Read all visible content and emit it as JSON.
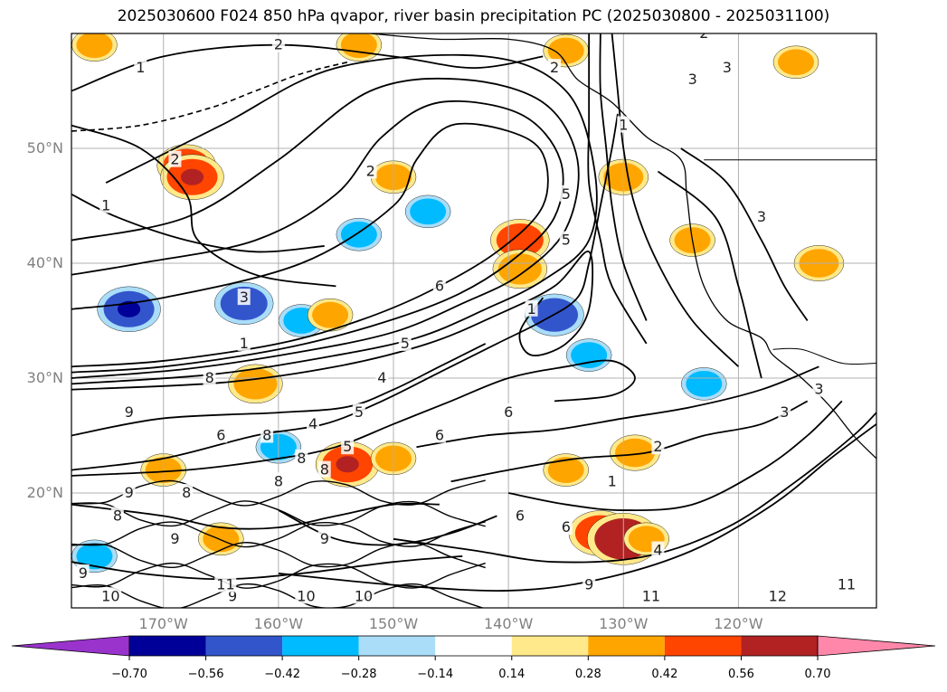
{
  "title": "2025030600 F024 850 hPa qvapor, river basin precipitation PC (2025030800 - 2025031100)",
  "chart_data": {
    "type": "contour",
    "title": "2025030600 F024 850 hPa qvapor, river basin precipitation PC (2025030800 - 2025031100)",
    "lat_ticks": [
      "50°N",
      "40°N",
      "30°N",
      "20°N"
    ],
    "lat_values": [
      50,
      40,
      30,
      20
    ],
    "lon_ticks": [
      "170°W",
      "160°W",
      "150°W",
      "140°W",
      "130°W",
      "120°W"
    ],
    "lon_values": [
      -170,
      -160,
      -150,
      -140,
      -130,
      -120
    ],
    "xlim": [
      -178,
      -108
    ],
    "ylim": [
      10,
      60
    ],
    "grid": true,
    "colorbar": {
      "orientation": "horizontal",
      "extend": "both",
      "bounds": [
        -0.7,
        -0.56,
        -0.42,
        -0.28,
        -0.14,
        0.14,
        0.28,
        0.42,
        0.56,
        0.7
      ],
      "tick_labels": [
        "−0.70",
        "−0.56",
        "−0.42",
        "−0.28",
        "−0.14",
        "0.14",
        "0.28",
        "0.42",
        "0.56",
        "0.70"
      ],
      "colors": [
        "#9933cc",
        "#000099",
        "#3355cc",
        "#00bbff",
        "#aaddf8",
        "#ffffff",
        "#ffe98a",
        "#ffa500",
        "#ff4500",
        "#b22222",
        "#ff88aa"
      ]
    },
    "contour_labels": [
      {
        "text": "2",
        "lon": -160,
        "lat": 59
      },
      {
        "text": "2",
        "lon": -136,
        "lat": 57
      },
      {
        "text": "1",
        "lon": -172,
        "lat": 57
      },
      {
        "text": "2",
        "lon": -169,
        "lat": 49
      },
      {
        "text": "2",
        "lon": -152,
        "lat": 48
      },
      {
        "text": "1",
        "lon": -175,
        "lat": 45
      },
      {
        "text": "3",
        "lon": -163,
        "lat": 37
      },
      {
        "text": "1",
        "lon": -163,
        "lat": 33
      },
      {
        "text": "6",
        "lon": -146,
        "lat": 38
      },
      {
        "text": "5",
        "lon": -149,
        "lat": 33
      },
      {
        "text": "8",
        "lon": -166,
        "lat": 30
      },
      {
        "text": "9",
        "lon": -173,
        "lat": 27
      },
      {
        "text": "6",
        "lon": -165,
        "lat": 25
      },
      {
        "text": "6",
        "lon": -146,
        "lat": 25
      },
      {
        "text": "6",
        "lon": -140,
        "lat": 27
      },
      {
        "text": "6",
        "lon": -139,
        "lat": 18
      },
      {
        "text": "6",
        "lon": -135,
        "lat": 17
      },
      {
        "text": "1",
        "lon": -138,
        "lat": 36
      },
      {
        "text": "5",
        "lon": -135,
        "lat": 46
      },
      {
        "text": "5",
        "lon": -135,
        "lat": 42
      },
      {
        "text": "1",
        "lon": -130,
        "lat": 52
      },
      {
        "text": "3",
        "lon": -124,
        "lat": 56
      },
      {
        "text": "3",
        "lon": -121,
        "lat": 57
      },
      {
        "text": "2",
        "lon": -123,
        "lat": 60
      },
      {
        "text": "3",
        "lon": -118,
        "lat": 44
      },
      {
        "text": "3",
        "lon": -116,
        "lat": 27
      },
      {
        "text": "3",
        "lon": -113,
        "lat": 29
      },
      {
        "text": "2",
        "lon": -127,
        "lat": 24
      },
      {
        "text": "1",
        "lon": -131,
        "lat": 21
      },
      {
        "text": "4",
        "lon": -127,
        "lat": 15
      },
      {
        "text": "9",
        "lon": -133,
        "lat": 12
      },
      {
        "text": "11",
        "lon": -128,
        "lat": 11
      },
      {
        "text": "12",
        "lon": -117,
        "lat": 11
      },
      {
        "text": "11",
        "lon": -111,
        "lat": 12
      },
      {
        "text": "9",
        "lon": -164,
        "lat": 11
      },
      {
        "text": "10",
        "lon": -153,
        "lat": 11
      },
      {
        "text": "10",
        "lon": -158,
        "lat": 11
      },
      {
        "text": "9",
        "lon": -169,
        "lat": 16
      },
      {
        "text": "8",
        "lon": -174,
        "lat": 18
      },
      {
        "text": "9",
        "lon": -173,
        "lat": 20
      },
      {
        "text": "8",
        "lon": -168,
        "lat": 20
      },
      {
        "text": "11",
        "lon": -165,
        "lat": 12
      },
      {
        "text": "10",
        "lon": -175,
        "lat": 11
      },
      {
        "text": "9",
        "lon": -177,
        "lat": 13
      },
      {
        "text": "8",
        "lon": -160,
        "lat": 21
      },
      {
        "text": "8",
        "lon": -156,
        "lat": 22
      },
      {
        "text": "9",
        "lon": -156,
        "lat": 16
      },
      {
        "text": "5",
        "lon": -154,
        "lat": 24
      },
      {
        "text": "8",
        "lon": -161,
        "lat": 25
      },
      {
        "text": "8",
        "lon": -158,
        "lat": 23
      },
      {
        "text": "4",
        "lon": -157,
        "lat": 26
      },
      {
        "text": "5",
        "lon": -153,
        "lat": 27
      },
      {
        "text": "4",
        "lon": -151,
        "lat": 30
      }
    ],
    "precip_blobs": [
      {
        "lon": -168,
        "lat": 48.5,
        "v": 0.45
      },
      {
        "lon": -167.5,
        "lat": 47.5,
        "v": 0.5
      },
      {
        "lon": -173,
        "lat": 36,
        "v": -0.5
      },
      {
        "lon": -163,
        "lat": 36.5,
        "v": -0.45
      },
      {
        "lon": -158,
        "lat": 35,
        "v": -0.3
      },
      {
        "lon": -162,
        "lat": 29.5,
        "v": 0.4
      },
      {
        "lon": -155.5,
        "lat": 35.5,
        "v": 0.3
      },
      {
        "lon": -154,
        "lat": 22.5,
        "v": 0.5
      },
      {
        "lon": -150,
        "lat": 23,
        "v": 0.3
      },
      {
        "lon": -139,
        "lat": 42,
        "v": 0.45
      },
      {
        "lon": -139,
        "lat": 39.5,
        "v": 0.4
      },
      {
        "lon": -136,
        "lat": 35.5,
        "v": -0.45
      },
      {
        "lon": -133,
        "lat": 32,
        "v": -0.3
      },
      {
        "lon": -130,
        "lat": 47.5,
        "v": 0.35
      },
      {
        "lon": -123,
        "lat": 29.5,
        "v": -0.3
      },
      {
        "lon": -129,
        "lat": 23.5,
        "v": 0.35
      },
      {
        "lon": -135,
        "lat": 22,
        "v": 0.3
      },
      {
        "lon": -132,
        "lat": 16.5,
        "v": 0.5
      },
      {
        "lon": -130,
        "lat": 16,
        "v": 0.6
      },
      {
        "lon": -128,
        "lat": 16,
        "v": 0.3
      },
      {
        "lon": -150,
        "lat": 47.5,
        "v": 0.3
      },
      {
        "lon": -153,
        "lat": 42.5,
        "v": -0.3
      },
      {
        "lon": -147,
        "lat": 44.5,
        "v": -0.3
      },
      {
        "lon": -176,
        "lat": 14.5,
        "v": -0.3
      },
      {
        "lon": -170,
        "lat": 22,
        "v": 0.3
      },
      {
        "lon": -160,
        "lat": 24,
        "v": -0.3
      },
      {
        "lon": -165,
        "lat": 16,
        "v": 0.3
      },
      {
        "lon": -135,
        "lat": 58.5,
        "v": 0.3
      },
      {
        "lon": -113,
        "lat": 40,
        "v": 0.35
      },
      {
        "lon": -124,
        "lat": 42,
        "v": 0.3
      },
      {
        "lon": -115,
        "lat": 57.5,
        "v": 0.3
      },
      {
        "lon": -176,
        "lat": 59,
        "v": 0.3
      },
      {
        "lon": -153,
        "lat": 59,
        "v": 0.3
      }
    ],
    "streamlines": [
      [
        [
          -178,
          31
        ],
        [
          -170,
          31.5
        ],
        [
          -160,
          33
        ],
        [
          -153,
          35
        ],
        [
          -147,
          37.5
        ],
        [
          -141,
          41
        ],
        [
          -137,
          45
        ],
        [
          -137,
          49.5
        ],
        [
          -140,
          51.5
        ],
        [
          -145,
          52
        ],
        [
          -148,
          49
        ],
        [
          -150,
          45
        ],
        [
          -158,
          40
        ],
        [
          -170,
          37
        ],
        [
          -178,
          36
        ]
      ],
      [
        [
          -178,
          30.5
        ],
        [
          -170,
          31
        ],
        [
          -160,
          32.5
        ],
        [
          -152,
          34.5
        ],
        [
          -145,
          37
        ],
        [
          -140,
          40
        ],
        [
          -136,
          44
        ],
        [
          -135.5,
          49
        ],
        [
          -139,
          53
        ],
        [
          -146,
          54
        ],
        [
          -151,
          51
        ],
        [
          -155,
          46
        ],
        [
          -162,
          42
        ],
        [
          -172,
          40
        ],
        [
          -178,
          39
        ]
      ],
      [
        [
          -178,
          30
        ],
        [
          -168,
          30.8
        ],
        [
          -158,
          32.3
        ],
        [
          -150,
          34
        ],
        [
          -144,
          36.5
        ],
        [
          -139,
          39
        ],
        [
          -135,
          43
        ],
        [
          -134,
          49
        ],
        [
          -137,
          54
        ],
        [
          -144,
          56
        ],
        [
          -152,
          55
        ],
        [
          -160,
          49
        ],
        [
          -168,
          44
        ],
        [
          -178,
          42
        ]
      ],
      [
        [
          -178,
          29.5
        ],
        [
          -166,
          30.3
        ],
        [
          -156,
          31.8
        ],
        [
          -148,
          33.5
        ],
        [
          -142,
          36
        ],
        [
          -137,
          38.5
        ],
        [
          -133,
          42
        ],
        [
          -132.5,
          48
        ],
        [
          -135,
          55
        ],
        [
          -142,
          58
        ],
        [
          -155,
          57
        ],
        [
          -165,
          52
        ],
        [
          -175,
          47
        ]
      ],
      [
        [
          -178,
          29
        ],
        [
          -165,
          29.6
        ],
        [
          -155,
          31
        ],
        [
          -147,
          33
        ],
        [
          -141,
          35.5
        ],
        [
          -136,
          38
        ],
        [
          -133,
          41
        ],
        [
          -133,
          36
        ],
        [
          -135,
          33
        ],
        [
          -138,
          32
        ],
        [
          -139,
          34
        ],
        [
          -137,
          37
        ]
      ],
      [
        [
          -178,
          22
        ],
        [
          -170,
          23
        ],
        [
          -162,
          25
        ],
        [
          -156,
          26
        ],
        [
          -151,
          28
        ],
        [
          -146,
          30.5
        ],
        [
          -141,
          33
        ],
        [
          -137,
          35
        ],
        [
          -134,
          37
        ],
        [
          -133,
          40
        ],
        [
          -132,
          45
        ],
        [
          -131,
          50
        ],
        [
          -130.5,
          53
        ]
      ],
      [
        [
          -178,
          21.5
        ],
        [
          -168,
          22
        ],
        [
          -160,
          23
        ],
        [
          -155,
          24
        ],
        [
          -150,
          26
        ],
        [
          -145,
          28
        ],
        [
          -140,
          30
        ],
        [
          -135,
          31
        ],
        [
          -131,
          31.5
        ],
        [
          -129,
          30
        ],
        [
          -131,
          28.5
        ],
        [
          -136,
          28
        ]
      ],
      [
        [
          -140,
          20
        ],
        [
          -135,
          19
        ],
        [
          -130,
          18.5
        ],
        [
          -124,
          19
        ],
        [
          -118,
          22
        ],
        [
          -114,
          25
        ],
        [
          -111,
          28
        ]
      ],
      [
        [
          -150,
          16
        ],
        [
          -143,
          15
        ],
        [
          -136,
          14
        ],
        [
          -128,
          14.5
        ],
        [
          -121,
          17
        ],
        [
          -115,
          21
        ],
        [
          -110,
          25
        ],
        [
          -108,
          27
        ]
      ],
      [
        [
          -160,
          13
        ],
        [
          -150,
          12
        ],
        [
          -140,
          11.5
        ],
        [
          -132,
          12.5
        ],
        [
          -124,
          15
        ],
        [
          -117,
          19
        ],
        [
          -112,
          23
        ],
        [
          -108,
          26
        ]
      ],
      [
        [
          -145,
          21
        ],
        [
          -140,
          22
        ],
        [
          -134,
          23
        ],
        [
          -128,
          23.5
        ],
        [
          -123,
          25
        ],
        [
          -118,
          26
        ],
        [
          -114,
          28
        ]
      ],
      [
        [
          -148,
          24
        ],
        [
          -142,
          25
        ],
        [
          -136,
          25.5
        ],
        [
          -130,
          26.5
        ],
        [
          -124,
          27.5
        ],
        [
          -118,
          29
        ],
        [
          -113,
          31
        ]
      ],
      [
        [
          -178,
          52
        ],
        [
          -172,
          50
        ],
        [
          -168,
          46
        ],
        [
          -167,
          42
        ],
        [
          -162,
          39
        ],
        [
          -155,
          38
        ]
      ],
      [
        [
          -178,
          55
        ],
        [
          -170,
          58
        ],
        [
          -160,
          59
        ],
        [
          -150,
          58
        ],
        [
          -143,
          57
        ],
        [
          -137,
          58
        ]
      ],
      [
        [
          -178,
          46
        ],
        [
          -174,
          44
        ],
        [
          -168,
          42
        ],
        [
          -162,
          41
        ],
        [
          -156,
          41.5
        ]
      ],
      [
        [
          -132,
          60
        ],
        [
          -132,
          55
        ],
        [
          -131.5,
          50
        ],
        [
          -131,
          45
        ],
        [
          -130,
          40
        ],
        [
          -128,
          35
        ]
      ],
      [
        [
          -131,
          60
        ],
        [
          -130.5,
          55
        ],
        [
          -130,
          50
        ],
        [
          -129,
          45
        ],
        [
          -127,
          40
        ],
        [
          -124,
          35
        ],
        [
          -120,
          31
        ]
      ],
      [
        [
          -133,
          60
        ],
        [
          -133,
          56
        ],
        [
          -133,
          52
        ],
        [
          -133,
          47
        ],
        [
          -132,
          42
        ],
        [
          -131,
          38
        ],
        [
          -128,
          33
        ]
      ],
      [
        [
          -178,
          25
        ],
        [
          -170,
          26.5
        ],
        [
          -160,
          27
        ],
        [
          -154,
          27.5
        ],
        [
          -150,
          29
        ],
        [
          -146,
          31
        ],
        [
          -142,
          33
        ]
      ],
      [
        [
          -178,
          19
        ],
        [
          -170,
          18
        ],
        [
          -165,
          17
        ],
        [
          -160,
          17
        ],
        [
          -155,
          18
        ],
        [
          -150,
          19
        ],
        [
          -146,
          19
        ]
      ],
      [
        [
          -178,
          14
        ],
        [
          -172,
          13
        ],
        [
          -165,
          12.5
        ],
        [
          -158,
          13
        ],
        [
          -150,
          14
        ],
        [
          -144,
          14.5
        ]
      ],
      [
        [
          -160,
          18.5
        ],
        [
          -155,
          16
        ],
        [
          -150,
          15.5
        ],
        [
          -145,
          16.5
        ],
        [
          -141,
          18
        ]
      ],
      [
        [
          -127,
          48
        ],
        [
          -122,
          44
        ],
        [
          -120,
          38
        ],
        [
          -119,
          34
        ],
        [
          -118,
          30
        ]
      ],
      [
        [
          -125,
          50
        ],
        [
          -121,
          47
        ],
        [
          -118,
          42
        ],
        [
          -116,
          38
        ],
        [
          -114,
          35
        ]
      ]
    ]
  },
  "colors": {
    "coastline": "#000000",
    "grid": "#b0b0b0",
    "contour": "#000000",
    "tick_label": "#808080"
  }
}
